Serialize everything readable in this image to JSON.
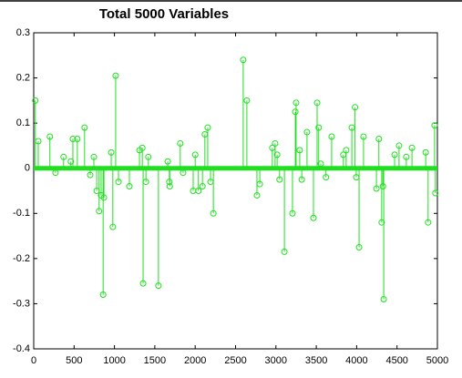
{
  "chart_data": {
    "type": "stem",
    "title": "Total 5000 Variables",
    "color": "#1ee01e",
    "x": [
      20,
      56,
      200,
      270,
      370,
      460,
      485,
      540,
      630,
      700,
      745,
      780,
      810,
      835,
      860,
      870,
      960,
      980,
      1015,
      1050,
      1185,
      1310,
      1345,
      1355,
      1390,
      1420,
      1545,
      1660,
      1680,
      1685,
      1815,
      1850,
      1975,
      2000,
      2040,
      2090,
      2120,
      2155,
      2190,
      2225,
      2595,
      2640,
      2765,
      2800,
      2955,
      2990,
      3015,
      3045,
      3105,
      3205,
      3240,
      3250,
      3295,
      3320,
      3385,
      3465,
      3510,
      3530,
      3555,
      3620,
      3690,
      3835,
      3870,
      3940,
      3980,
      3995,
      4030,
      4085,
      4245,
      4275,
      4310,
      4325,
      4335,
      4470,
      4525,
      4615,
      4685,
      4855,
      4885,
      4965,
      4975
    ],
    "values": [
      0.15,
      0.06,
      0.07,
      -0.01,
      0.025,
      0.015,
      0.065,
      0.065,
      0.09,
      -0.015,
      0.025,
      -0.05,
      -0.095,
      -0.06,
      -0.28,
      -0.065,
      0.035,
      -0.13,
      0.205,
      -0.03,
      -0.04,
      0.04,
      0.045,
      -0.255,
      -0.03,
      0.025,
      -0.26,
      0.015,
      -0.03,
      -0.04,
      0.055,
      -0.01,
      -0.05,
      0.03,
      -0.05,
      -0.04,
      0.075,
      0.09,
      -0.03,
      -0.1,
      0.24,
      0.15,
      -0.06,
      -0.035,
      0.045,
      0.055,
      0.03,
      -0.025,
      -0.185,
      -0.1,
      0.125,
      0.145,
      0.04,
      -0.025,
      0.08,
      -0.11,
      0.145,
      0.09,
      0.01,
      -0.02,
      0.07,
      0.03,
      0.04,
      0.09,
      0.135,
      -0.02,
      -0.175,
      0.07,
      -0.045,
      0.065,
      -0.12,
      -0.04,
      -0.29,
      0.03,
      0.05,
      0.025,
      0.045,
      0.035,
      -0.12,
      0.095,
      -0.055
    ],
    "xlim": [
      0,
      5000
    ],
    "xticks": [
      0,
      500,
      1000,
      1500,
      2000,
      2500,
      3000,
      3500,
      4000,
      4500,
      5000
    ],
    "ylim": [
      -0.4,
      0.3
    ],
    "yticks": [
      -0.4,
      -0.3,
      -0.2,
      -0.1,
      0,
      0.1,
      0.2,
      0.3
    ]
  }
}
